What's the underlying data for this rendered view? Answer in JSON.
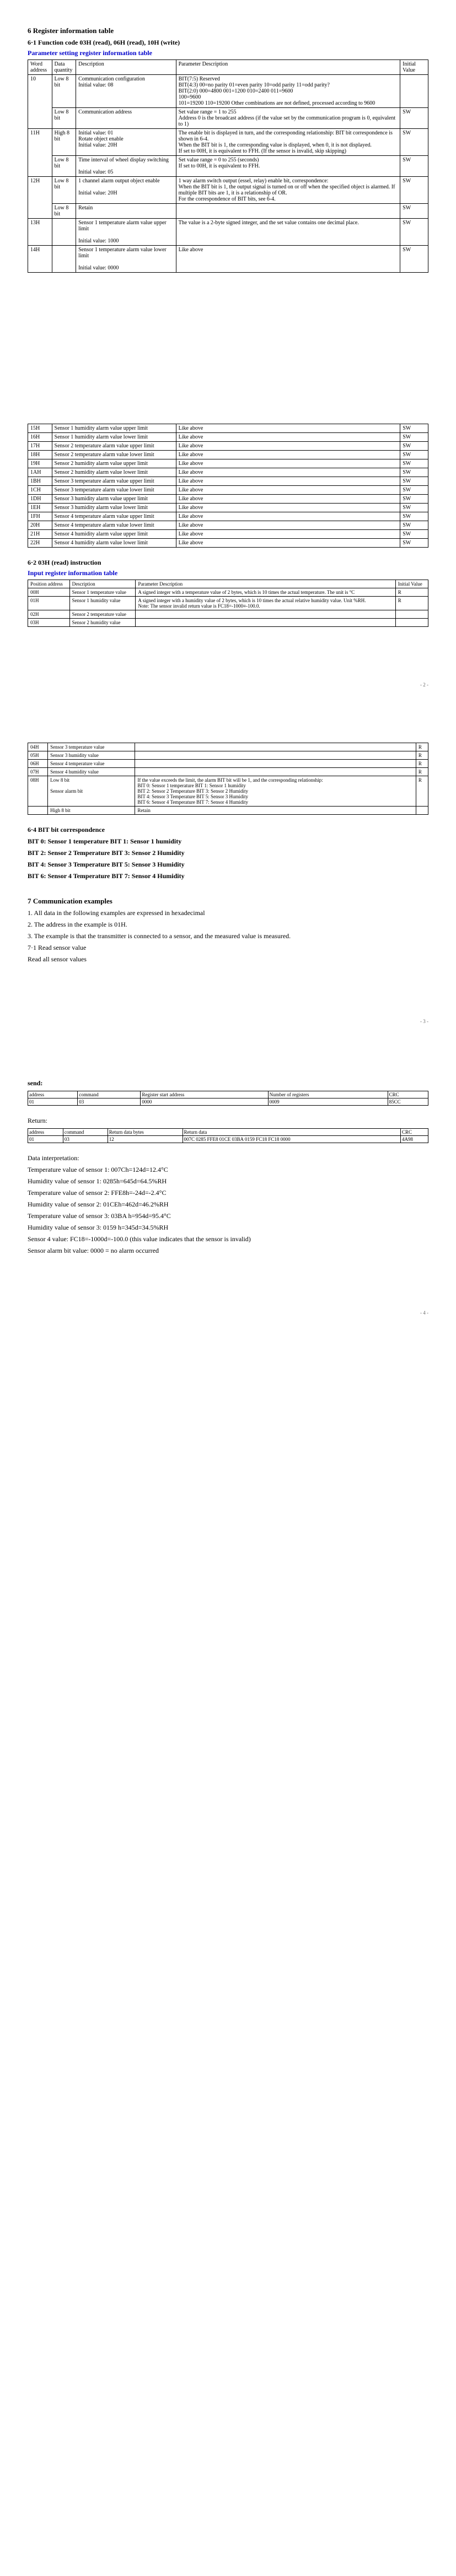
{
  "title_6": "6 Register information table",
  "title_6_1": "6·1 Function code 03H (read), 06H (read), 10H (write)",
  "tbl_param_title": "Parameter setting register information table",
  "param_hdr": [
    "Word address",
    "Data quantity",
    "Description",
    "Parameter Description",
    "Initial Value"
  ],
  "r10": {
    "addr": "10",
    "dq": "Low 8 bit",
    "desc": "Communication configuration\nInitial value: 08",
    "param": "BIT(7:5) Reserved\nBIT(4:3) 00=no parity 01=even parity 10=odd parity 11=odd parity?\nBIT(2:0) 000=4800 001=1200 010=2400 011=9600\n100=9600\n101=19200  110=19200 Other combinations are not defined, processed according to 9600",
    "iv": ""
  },
  "r10b": {
    "dq": "Low 8 bit",
    "desc": "Communication address",
    "param": "Set value range = 1 to 255\nAddress 0 is the broadcast address (if the value set by the communication program is 0, equivalent to 1)",
    "iv": "SW"
  },
  "r11": {
    "addr": "11H",
    "dq": "High 8 bit",
    "desc": "Initial value: 01\nRotate object enable\nInitial value: 20H",
    "param": "The enable bit is displayed in turn, and the corresponding relationship: BIT bit correspondence is shown in 6-4.\nWhen the BIT bit is 1, the corresponding value is displayed, when 0, it is not displayed.\nIf set to 00H, it is equivalent to FFH. (If the sensor is invalid, skip skipping)",
    "iv": "SW"
  },
  "r11b": {
    "dq": "Low 8 bit",
    "desc": "Time interval of wheel display switching\n\nInitial value: 05",
    "param": "Set value range = 0 to 255 (seconds)\nIf set to 00H, it is equivalent to FFH.",
    "iv": "SW"
  },
  "r12": {
    "addr": "12H",
    "dq": "Low 8 bit",
    "desc": "1 channel alarm output object enable\n\nInitial value: 20H",
    "param": "1 way alarm switch output (essel, relay) enable bit, correspondence:\nWhen the BIT bit is 1, the output signal is turned on or off when the specified object is alarmed. If multiple BIT bits are 1, it is a relationship of OR.\nFor the correspondence of BIT bits, see 6-4.",
    "iv": "SW"
  },
  "r12b": {
    "dq": "Low 8 bit",
    "desc": "Retain",
    "param": "",
    "iv": "SW"
  },
  "r13": {
    "addr": "13H",
    "dq": "",
    "desc": "Sensor 1 temperature alarm value upper limit\n\nInitial value: 1000",
    "param": "The value is a 2-byte signed integer, and the set value contains one decimal place.",
    "iv": "SW"
  },
  "r14": {
    "addr": "14H",
    "dq": "",
    "desc": "Sensor 1 temperature alarm value lower limit\n\nInitial value: 0000",
    "param": "Like above",
    "iv": "SW"
  },
  "arows": [
    {
      "a": "15H",
      "d": "Sensor 1 humidity alarm value upper limit",
      "p": "Like above"
    },
    {
      "a": "16H",
      "d": "Sensor 1 humidity alarm value lower limit",
      "p": "Like above"
    },
    {
      "a": "17H",
      "d": "Sensor 2 temperature alarm value upper limit",
      "p": "Like above"
    },
    {
      "a": "18H",
      "d": "Sensor 2 temperature alarm value lower limit",
      "p": "Like above"
    },
    {
      "a": "19H",
      "d": "Sensor 2 humidity alarm value upper limit",
      "p": "Like above"
    },
    {
      "a": "1AH",
      "d": "Sensor 2 humidity alarm value lower limit",
      "p": "Like above"
    },
    {
      "a": "1BH",
      "d": "Sensor 3 temperature alarm value upper limit",
      "p": "Like above"
    },
    {
      "a": "1CH",
      "d": "Sensor 3 temperature alarm value lower limit",
      "p": "Like above"
    },
    {
      "a": "1DH",
      "d": "Sensor 3 humidity alarm value upper limit",
      "p": "Like above"
    },
    {
      "a": "1EH",
      "d": "Sensor 3 humidity alarm value lower limit",
      "p": "Like above"
    },
    {
      "a": "1FH",
      "d": "Sensor 4 temperature alarm value upper limit",
      "p": "Like above"
    },
    {
      "a": "20H",
      "d": "Sensor 4 temperature alarm value lower limit",
      "p": "Like above"
    },
    {
      "a": "21H",
      "d": "Sensor 4 humidity alarm value upper limit",
      "p": "Like above"
    },
    {
      "a": "22H",
      "d": "Sensor 4 humidity alarm value lower limit",
      "p": "Like above"
    }
  ],
  "title_6_2": "6·2 03H (read) instruction",
  "tbl_input_title": "Input register information table",
  "in_hdr": [
    "Position address",
    "Description",
    "Parameter Description",
    "Initial Value"
  ],
  "irows1": [
    {
      "a": "00H",
      "d": "Sensor 1 temperature value",
      "p": "A signed integer with a temperature value of 2 bytes, which is 10 times the actual temperature. The unit is °C",
      "iv": "R"
    },
    {
      "a": "01H",
      "d": "Sensor 1 humidity value",
      "p": "A signed integer with a humidity value of 2 bytes, which is 10 times the actual relative humidity value. Unit %RH.\nNote: The sensor invalid return value is FC18=-1000≡-100.0.",
      "iv": "R"
    },
    {
      "a": "02H",
      "d": "Sensor 2 temperature value",
      "p": "",
      "iv": ""
    },
    {
      "a": "03H",
      "d": "Sensor 2 humidity value",
      "p": "",
      "iv": ""
    }
  ],
  "irows2": [
    {
      "a": "04H",
      "d": "Sensor 3 temperature value",
      "p": "",
      "iv": "R"
    },
    {
      "a": "05H",
      "d": "Sensor 3 humidity value",
      "p": "",
      "iv": "R"
    },
    {
      "a": "06H",
      "d": "Sensor 4 temperature value",
      "p": "",
      "iv": "R"
    },
    {
      "a": "07H",
      "d": "Sensor 4 humidity value",
      "p": "",
      "iv": "R"
    },
    {
      "a": "08H",
      "d": "Low 8 bit\n\nSensor alarm bit",
      "p": "If the value exceeds the limit, the alarm BIT bit will be 1, and the corresponding relationship:\nBIT 0: Sensor 1 temperature BIT 1: Sensor 1 humidity\nBIT 2: Sensor 2 Temperature BIT 3: Sensor 2 Humidity\nBIT 4: Sensor 3 Temperature BIT 5: Sensor 3 Humidity\nBIT 6: Sensor 4 Temperature BIT 7: Sensor 4 Humidity",
      "iv": "R"
    },
    {
      "a": "",
      "d": "High 8 bit",
      "p": "Retain",
      "iv": ""
    }
  ],
  "title_6_4": "6·4 BIT bit correspondence",
  "bitlines": [
    "BIT 0: Sensor 1 temperature BIT 1: Sensor 1 humidity",
    "BIT 2: Sensor 2 Temperature BIT 3: Sensor 2 Humidity",
    "BIT 4: Sensor 3 Temperature BIT 5: Sensor 3 Humidity",
    "BIT 6: Sensor 4 Temperature BIT 7: Sensor 4 Humidity"
  ],
  "title_7": "7 Communication examples",
  "p7": [
    "1. All data in the following examples are expressed in hexadecimal",
    "2. The address in the example is 01H.",
    "3. The example is that the transmitter is connected to a sensor, and the measured value is measured.",
    "7·1 Read sensor value",
    "Read all sensor values"
  ],
  "send_lbl": "send:",
  "send_hdr": [
    "address",
    "command",
    "Register start address",
    "Number of registers",
    "CRC"
  ],
  "send_row": [
    "01",
    "03",
    "0000",
    "0009",
    "85CC"
  ],
  "ret_lbl": "Return:",
  "ret_hdr": [
    "address",
    "command",
    "Return data bytes",
    "Return data",
    "CRC"
  ],
  "ret_row": [
    "01",
    "03",
    "12",
    "007C 0285 FFE8 01CE 03BA 0159 FC18 FC18 0000",
    "4A98"
  ],
  "di_title": "Data interpretation:",
  "di": [
    "Temperature value of sensor 1: 007Ch=124d=12.4°C",
    "Humidity value of sensor 1: 0285h=645d=64.5%RH",
    "Temperature value of sensor 2: FFE8h=-24d=-2.4°C",
    "Humidity value of sensor 2: 01CEh=462d=46.2%RH",
    "Temperature value of sensor 3: 03BA h=954d=95.4°C",
    "Humidity value of sensor 3: 0159 h=345d=34.5%RH",
    "Sensor 4 value: FC18=-1000d=-100.0 (this value indicates that the sensor is invalid)",
    "Sensor alarm bit value: 0000 = no alarm occurred"
  ]
}
